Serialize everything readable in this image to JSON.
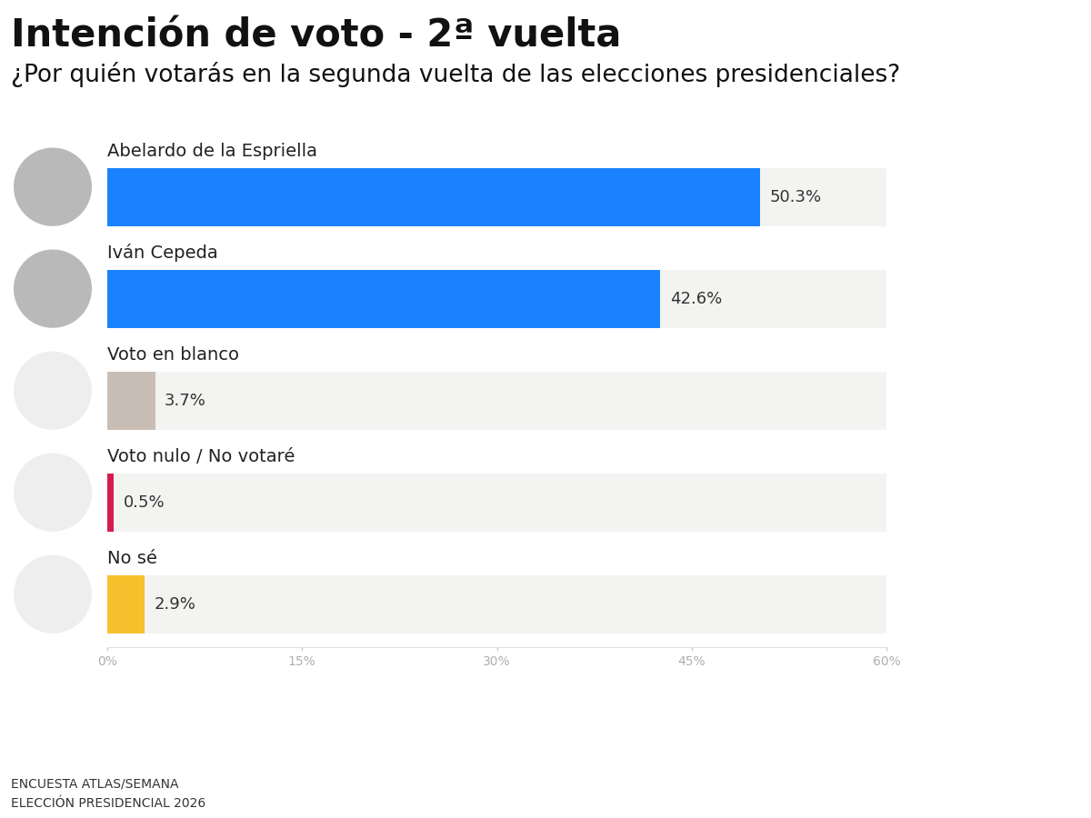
{
  "chart_data": {
    "type": "bar",
    "orientation": "horizontal",
    "title": "Intención de voto - 2ª vuelta",
    "subtitle": "¿Por quién votarás en la segunda vuelta de las elecciones presidenciales?",
    "categories": [
      "Abelardo de la Espriella",
      "Iván Cepeda",
      "Voto en blanco",
      "Voto nulo / No votaré",
      "No sé"
    ],
    "values": [
      50.3,
      42.6,
      3.7,
      0.5,
      2.9
    ],
    "value_labels": [
      "50.3%",
      "42.6%",
      "3.7%",
      "0.5%",
      "2.9%"
    ],
    "colors": [
      "#1a82ff",
      "#1a82ff",
      "#c9beb6",
      "#d81b4f",
      "#f7c12e"
    ],
    "data_labels": true,
    "grid": false,
    "xlim": [
      0,
      60
    ],
    "xticks": [
      {
        "value": 0,
        "label": "0%"
      },
      {
        "value": 15,
        "label": "15%"
      },
      {
        "value": 30,
        "label": "30%"
      },
      {
        "value": 45,
        "label": "45%"
      },
      {
        "value": 60,
        "label": "60%"
      }
    ],
    "source": [
      "ENCUESTA ATLAS/SEMANA",
      "ELECCIÓN PRESIDENCIAL 2026"
    ]
  }
}
